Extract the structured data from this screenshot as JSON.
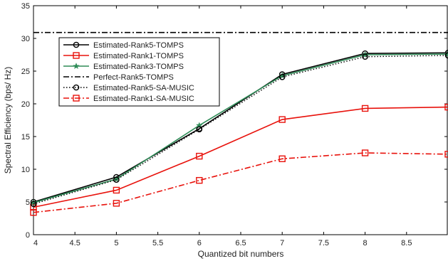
{
  "chart_data": {
    "type": "line",
    "title": "",
    "xlabel": "Quantized bit numbers",
    "ylabel": "Spectral Efficiency (bps/ Hz)",
    "xlim": [
      4,
      9
    ],
    "ylim": [
      0,
      35
    ],
    "xticks": [
      "4",
      "4.5",
      "5",
      "5.5",
      "6",
      "6.5",
      "7",
      "7.5",
      "8",
      "8.5"
    ],
    "yticks": [
      "0",
      "5",
      "10",
      "15",
      "20",
      "25",
      "30",
      "35"
    ],
    "grid": false,
    "legend_position": "top-left",
    "series": [
      {
        "name": "Estimated-Rank5-TOMPS",
        "x": [
          4,
          5,
          6,
          7,
          8,
          9
        ],
        "y": [
          5.0,
          8.8,
          16.2,
          24.5,
          27.7,
          27.8
        ],
        "color": "#000000",
        "dash": "solid",
        "marker": "circle"
      },
      {
        "name": "Estimated-Rank1-TOMPS",
        "x": [
          4,
          5,
          6,
          7,
          8,
          9
        ],
        "y": [
          4.2,
          6.8,
          12.0,
          17.6,
          19.3,
          19.5
        ],
        "color": "#e8120c",
        "dash": "solid",
        "marker": "square"
      },
      {
        "name": "Estimated-Rank3-TOMPS",
        "x": [
          4,
          5,
          6,
          7,
          8,
          9
        ],
        "y": [
          4.9,
          8.5,
          16.7,
          24.3,
          27.5,
          27.6
        ],
        "color": "#2e8b57",
        "dash": "solid",
        "marker": "star"
      },
      {
        "name": "Perfect-Rank5-TOMPS",
        "x": [
          4,
          9
        ],
        "y": [
          30.9,
          30.9
        ],
        "color": "#000000",
        "dash": "dashdot",
        "marker": "none"
      },
      {
        "name": "Estimated-Rank5-SA-MUSIC",
        "x": [
          4,
          5,
          6,
          7,
          8,
          9
        ],
        "y": [
          4.7,
          8.4,
          16.1,
          24.1,
          27.2,
          27.4
        ],
        "color": "#000000",
        "dash": "dotted",
        "marker": "circle"
      },
      {
        "name": "Estimated-Rank1-SA-MUSIC",
        "x": [
          4,
          5,
          6,
          7,
          8,
          9
        ],
        "y": [
          3.4,
          4.8,
          8.3,
          11.6,
          12.5,
          12.3
        ],
        "color": "#e8120c",
        "dash": "dashdot",
        "marker": "square"
      }
    ]
  }
}
